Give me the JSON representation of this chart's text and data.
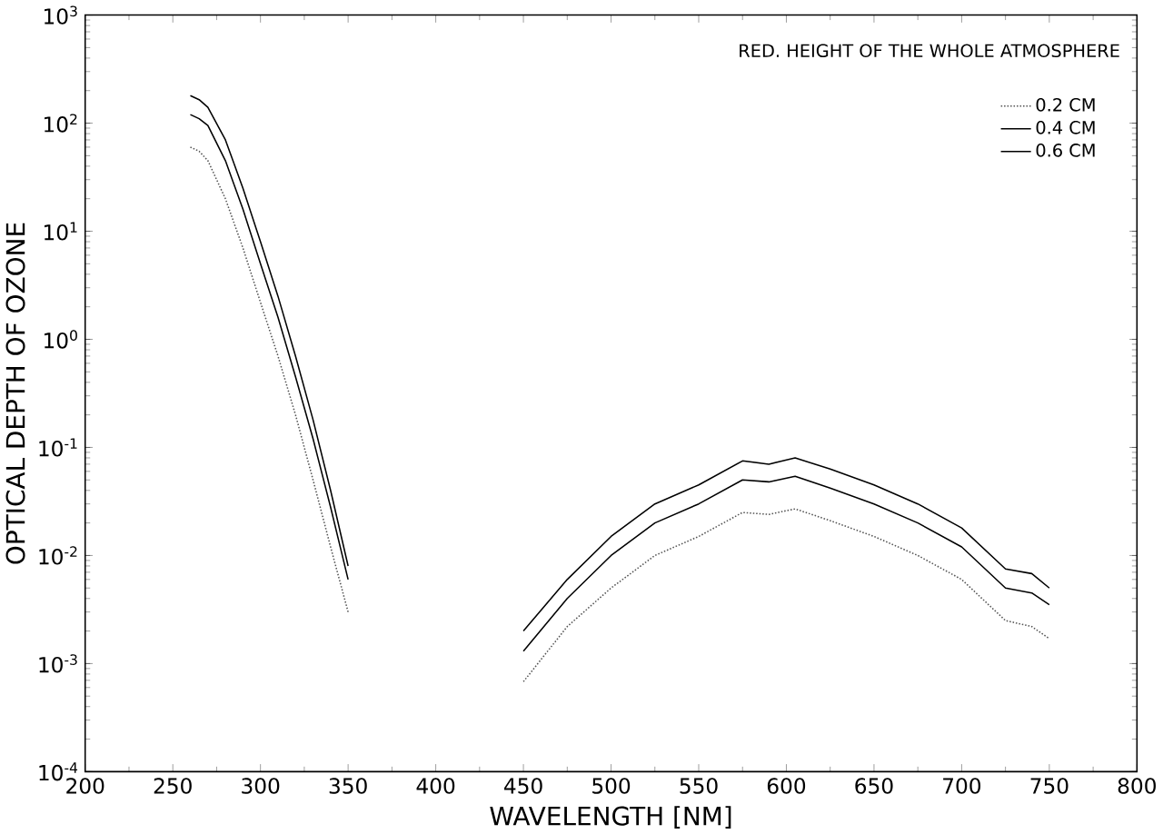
{
  "chart_data": {
    "type": "line",
    "xlabel": "WAVELENGTH [NM]",
    "ylabel": "OPTICAL DEPTH OF OZONE",
    "legend_title": "RED. HEIGHT OF THE WHOLE ATMOSPHERE",
    "legend": "top right",
    "log": "y",
    "grid": false,
    "marker": "none",
    "x": [
      260,
      265,
      270,
      280,
      290,
      300,
      310,
      320,
      330,
      340,
      350,
      400,
      450,
      475,
      500,
      525,
      550,
      575,
      590,
      605,
      625,
      650,
      675,
      700,
      725,
      740,
      750
    ],
    "xlim": [
      200,
      800
    ],
    "xticks": [
      200,
      250,
      300,
      350,
      400,
      450,
      500,
      550,
      600,
      650,
      700,
      750,
      800
    ],
    "ylim": [
      0.0001,
      1000
    ],
    "yticks": [
      {
        "value": 0.0001,
        "label": "10$^{-4}$"
      },
      {
        "value": 0.001,
        "label": "10$^{-3}$"
      },
      {
        "value": 0.01,
        "label": "10$^{-2}$"
      },
      {
        "value": 0.1,
        "label": "10$^{-1}$"
      },
      {
        "value": 1,
        "label": "10$^{0}$"
      },
      {
        "value": 10,
        "label": "10$^{1}$"
      },
      {
        "value": 100,
        "label": "10$^{2}$"
      },
      {
        "value": 1000,
        "label": "10$^{3}$"
      }
    ],
    "series": [
      {
        "name": "0.2  CM",
        "color": "#555555",
        "line_style": "dotted",
        "values": [
          60,
          55,
          45,
          20,
          7,
          2.2,
          0.7,
          0.2,
          0.05,
          0.012,
          0.003,
          null,
          0.00068,
          0.0022,
          0.005,
          0.01,
          0.015,
          0.025,
          0.024,
          0.027,
          0.021,
          0.015,
          0.01,
          0.006,
          0.0025,
          0.0022,
          0.0017
        ]
      },
      {
        "name": "0.4  CM",
        "color": "#000000",
        "line_style": "solid",
        "values": [
          120,
          110,
          95,
          45,
          16,
          5,
          1.6,
          0.45,
          0.12,
          0.028,
          0.006,
          null,
          0.0013,
          0.004,
          0.01,
          0.02,
          0.03,
          0.05,
          0.048,
          0.054,
          0.042,
          0.03,
          0.02,
          0.012,
          0.005,
          0.0045,
          0.0035
        ]
      },
      {
        "name": "0.6  CM",
        "color": "#000000",
        "line_style": "solid",
        "values": [
          180,
          165,
          140,
          70,
          25,
          8,
          2.5,
          0.7,
          0.18,
          0.04,
          0.008,
          null,
          0.002,
          0.006,
          0.015,
          0.03,
          0.045,
          0.075,
          0.07,
          0.08,
          0.063,
          0.045,
          0.03,
          0.018,
          0.0075,
          0.0068,
          0.005
        ]
      }
    ]
  }
}
